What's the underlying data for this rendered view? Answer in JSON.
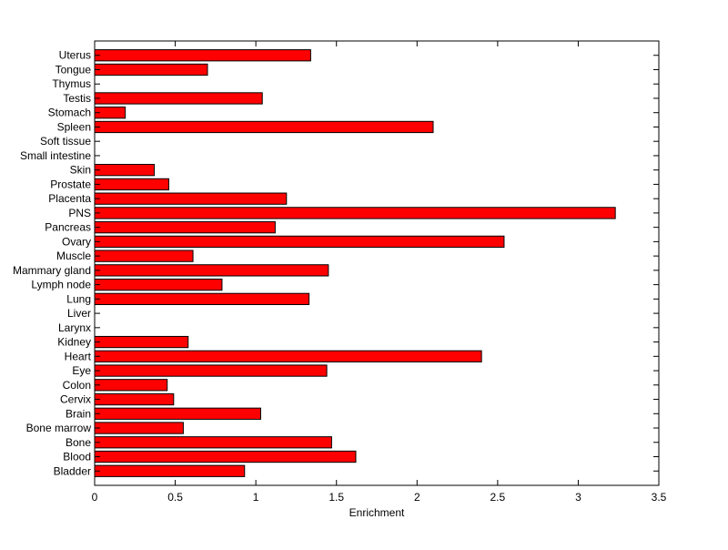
{
  "chart_data": {
    "type": "bar",
    "orientation": "horizontal",
    "title": "",
    "xlabel": "Enrichment",
    "ylabel": "",
    "xlim": [
      0,
      3.5
    ],
    "xticks": [
      "0",
      "0.5",
      "1",
      "1.5",
      "2",
      "2.5",
      "3",
      "3.5"
    ],
    "grid": false,
    "bar_color": "#ff0000",
    "categories": [
      "Bladder",
      "Blood",
      "Bone",
      "Bone marrow",
      "Brain",
      "Cervix",
      "Colon",
      "Eye",
      "Heart",
      "Kidney",
      "Larynx",
      "Liver",
      "Lung",
      "Lymph node",
      "Mammary gland",
      "Muscle",
      "Ovary",
      "Pancreas",
      "PNS",
      "Placenta",
      "Prostate",
      "Skin",
      "Small intestine",
      "Soft tissue",
      "Spleen",
      "Stomach",
      "Testis",
      "Thymus",
      "Tongue",
      "Uterus"
    ],
    "values": [
      0.93,
      1.62,
      1.47,
      0.55,
      1.03,
      0.49,
      0.45,
      1.44,
      2.4,
      0.58,
      0,
      0,
      1.33,
      0.79,
      1.45,
      0.61,
      2.54,
      1.12,
      3.23,
      1.19,
      0.46,
      0.37,
      0,
      0,
      2.1,
      0.19,
      1.04,
      0,
      0.7,
      1.34
    ]
  }
}
